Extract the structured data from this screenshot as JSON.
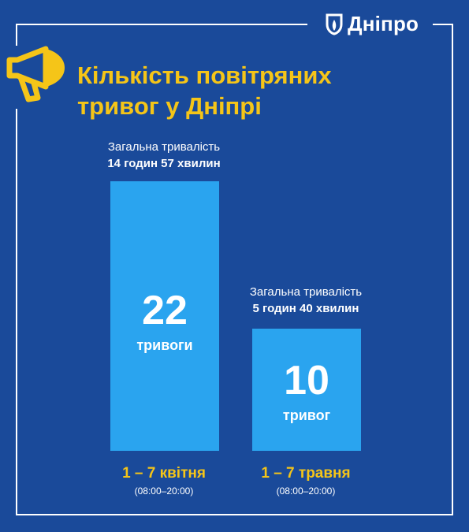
{
  "brand": {
    "name": "Дніпро"
  },
  "title_lines": [
    "Кількість повітряних",
    "тривог у Дніпрі"
  ],
  "colors": {
    "background": "#1a4a9a",
    "bar": "#2aa4ef",
    "accent": "#f5c518",
    "text": "#ffffff"
  },
  "icons": [
    "dnipro-logo-icon",
    "megaphone-icon"
  ],
  "bars": [
    {
      "category": "1 – 7 квітня",
      "time_range": "(08:00–20:00)",
      "duration_label": "Загальна тривалість",
      "duration_value": "14 годин 57 хвилин",
      "value_text": "22",
      "unit": "тривоги"
    },
    {
      "category": "1 – 7 травня",
      "time_range": "(08:00–20:00)",
      "duration_label": "Загальна тривалість",
      "duration_value": "5 годин 40 хвилин",
      "value_text": "10",
      "unit": "тривог"
    }
  ],
  "chart_data": {
    "type": "bar",
    "title": "Кількість повітряних тривог у Дніпрі",
    "categories": [
      "1 – 7 квітня",
      "1 – 7 травня"
    ],
    "values": [
      22,
      10
    ],
    "xlabel": "",
    "ylabel": "",
    "ylim": [
      0,
      22
    ],
    "grid": false
  }
}
